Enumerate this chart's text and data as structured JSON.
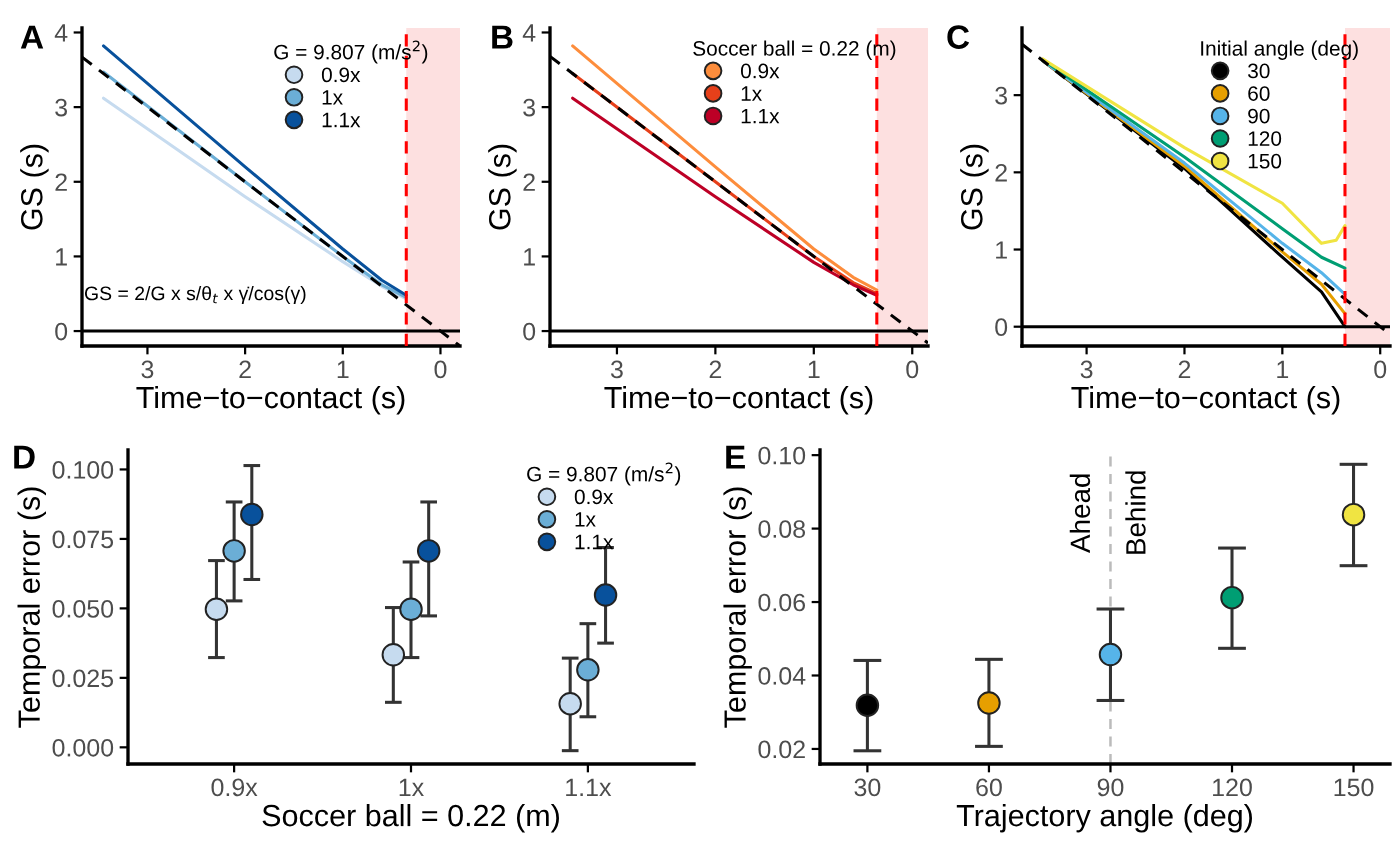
{
  "chart_data": [
    {
      "type": "line",
      "title": "A",
      "xlabel": "Time−to−contact (s)",
      "ylabel": "GS (s)",
      "legend_title": "G = 9.807 (m/s$^{2}$)",
      "legend": "top right",
      "grid": false,
      "xlim": [
        3.67,
        -0.2
      ],
      "xticks": [
        3,
        2,
        1,
        0
      ],
      "ylim": [
        -0.2,
        4.06
      ],
      "yticks": [
        0,
        1,
        2,
        3,
        4
      ],
      "annotations": [
        "GS = 2/G x s/θ$_{t}$ x γ̇/cos(γ)"
      ],
      "bands": [
        {
          "axis": "x",
          "from": 0.35,
          "to": -0.2,
          "color": "#fde0e0"
        }
      ],
      "ref_lines": [
        {
          "axis": "x",
          "value": 0.35,
          "color": "#ff0000",
          "line_style": "dashed"
        },
        {
          "axis": "y",
          "value": 0,
          "color": "#000000",
          "line_style": "solid"
        }
      ],
      "series": [
        {
          "name": "0.9x",
          "color": "#c6dbef",
          "x": [
            3.45,
            2,
            1,
            0.6,
            0.35
          ],
          "values": [
            3.12,
            1.8,
            0.93,
            0.6,
            0.43
          ]
        },
        {
          "name": "1x",
          "color": "#6baed6",
          "x": [
            3.45,
            2,
            1,
            0.6,
            0.35
          ],
          "values": [
            3.47,
            2.0,
            1.0,
            0.62,
            0.45
          ]
        },
        {
          "name": "1.1x",
          "color": "#08519c",
          "x": [
            3.45,
            2,
            1,
            0.6,
            0.35
          ],
          "values": [
            3.82,
            2.2,
            1.1,
            0.68,
            0.48
          ]
        },
        {
          "color": "#000000",
          "line_style": "dashed",
          "x": [
            3.67,
            -0.2
          ],
          "values": [
            3.67,
            -0.2
          ]
        }
      ]
    },
    {
      "type": "line",
      "title": "B",
      "xlabel": "Time−to−contact (s)",
      "ylabel": "GS (s)",
      "legend_title": "Soccer ball = 0.22 (m)",
      "legend": "top right",
      "grid": false,
      "xlim": [
        3.68,
        -0.16
      ],
      "xticks": [
        3,
        2,
        1,
        0
      ],
      "ylim": [
        -0.2,
        4.06
      ],
      "yticks": [
        0,
        1,
        2,
        3,
        4
      ],
      "bands": [
        {
          "axis": "x",
          "from": 0.36,
          "to": -0.16,
          "color": "#fde0e0"
        }
      ],
      "ref_lines": [
        {
          "axis": "x",
          "value": 0.36,
          "color": "#ff0000",
          "line_style": "dashed"
        },
        {
          "axis": "y",
          "value": 0,
          "color": "#000000",
          "line_style": "solid"
        }
      ],
      "series": [
        {
          "name": "0.9x",
          "color": "#fd8d3c",
          "x": [
            3.45,
            2,
            1,
            0.6,
            0.36
          ],
          "values": [
            3.82,
            2.2,
            1.1,
            0.72,
            0.55
          ]
        },
        {
          "name": "1x",
          "color": "#e6401a",
          "x": [
            3.45,
            2,
            1,
            0.6,
            0.36
          ],
          "values": [
            3.45,
            2.0,
            1.0,
            0.65,
            0.5
          ]
        },
        {
          "name": "1.1x",
          "color": "#bd0026",
          "x": [
            3.45,
            2,
            1,
            0.6,
            0.36
          ],
          "values": [
            3.12,
            1.8,
            0.92,
            0.62,
            0.48
          ]
        },
        {
          "color": "#000000",
          "line_style": "dashed",
          "x": [
            3.68,
            -0.16
          ],
          "values": [
            3.68,
            -0.16
          ]
        }
      ]
    },
    {
      "type": "line",
      "title": "C",
      "xlabel": "Time−to−contact (s)",
      "ylabel": "GS (s)",
      "legend_title": "Initial angle (deg)",
      "legend": "top right",
      "grid": false,
      "xlim": [
        3.66,
        -0.1
      ],
      "xticks": [
        3,
        2,
        1,
        0
      ],
      "ylim": [
        -0.25,
        3.87
      ],
      "yticks": [
        0,
        1,
        2,
        3
      ],
      "bands": [
        {
          "axis": "x",
          "from": 0.36,
          "to": -0.1,
          "color": "#fde0e0"
        }
      ],
      "ref_lines": [
        {
          "axis": "x",
          "value": 0.36,
          "color": "#ff0000",
          "line_style": "dashed"
        },
        {
          "axis": "y",
          "value": 0,
          "color": "#000000",
          "line_style": "solid"
        }
      ],
      "series": [
        {
          "name": "30",
          "color": "#000000",
          "x": [
            3.45,
            2,
            1,
            0.6,
            0.36
          ],
          "values": [
            3.45,
            2.05,
            0.9,
            0.45,
            0.0
          ]
        },
        {
          "name": "60",
          "color": "#e69f00",
          "x": [
            3.45,
            2,
            1,
            0.6,
            0.36
          ],
          "values": [
            3.45,
            2.08,
            0.97,
            0.55,
            0.17
          ]
        },
        {
          "name": "90",
          "color": "#56b4e9",
          "x": [
            3.45,
            2,
            1,
            0.6,
            0.36
          ],
          "values": [
            3.45,
            2.12,
            1.08,
            0.7,
            0.42
          ]
        },
        {
          "name": "120",
          "color": "#009e73",
          "x": [
            3.45,
            2,
            1,
            0.6,
            0.36
          ],
          "values": [
            3.46,
            2.2,
            1.27,
            0.9,
            0.76
          ]
        },
        {
          "name": "150",
          "color": "#f0e442",
          "x": [
            3.45,
            2,
            1,
            0.6,
            0.45,
            0.36
          ],
          "values": [
            3.47,
            2.32,
            1.6,
            1.08,
            1.12,
            1.31
          ]
        },
        {
          "color": "#000000",
          "line_style": "dashed",
          "x": [
            3.66,
            -0.1
          ],
          "values": [
            3.66,
            -0.1
          ]
        }
      ]
    },
    {
      "type": "scatter",
      "title": "D",
      "xlabel": "Soccer ball = 0.22 (m)",
      "ylabel": "Temporal error (s)",
      "legend_title": "G = 9.807 (m/s$^{2}$)",
      "legend": "top right",
      "grid": false,
      "marker": "circle",
      "categories": [
        "0.9x",
        "1x",
        "1.1x"
      ],
      "ylim": [
        -0.006,
        0.107
      ],
      "yticks": [
        {
          "value": 0,
          "label": "0.000"
        },
        {
          "value": 0.025,
          "label": "0.025"
        },
        {
          "value": 0.05,
          "label": "0.050"
        },
        {
          "value": 0.075,
          "label": "0.075"
        },
        {
          "value": 0.1,
          "label": "0.100"
        }
      ],
      "series": [
        {
          "name": "0.9x",
          "color": "#c6dbef",
          "values": [
            0.0497,
            0.0333,
            0.0157
          ],
          "errors": [
            [
              0.0323,
              0.0672
            ],
            [
              0.0162,
              0.0503
            ],
            [
              -0.0012,
              0.0321
            ]
          ]
        },
        {
          "name": "1x",
          "color": "#6baed6",
          "values": [
            0.0707,
            0.0497,
            0.0279
          ],
          "errors": [
            [
              0.0527,
              0.0883
            ],
            [
              0.0323,
              0.0667
            ],
            [
              0.011,
              0.0445
            ]
          ]
        },
        {
          "name": "1.1x",
          "color": "#08519c",
          "values": [
            0.0838,
            0.0707,
            0.0548
          ],
          "errors": [
            [
              0.0604,
              0.1014
            ],
            [
              0.0473,
              0.0883
            ],
            [
              0.0375,
              0.0719
            ]
          ]
        }
      ]
    },
    {
      "type": "scatter",
      "title": "E",
      "xlabel": "Trajectory angle (deg)",
      "ylabel": "Temporal error (s)",
      "grid": false,
      "marker": "circle",
      "x": [
        30,
        60,
        90,
        120,
        150
      ],
      "xlim": [
        18.3,
        159
      ],
      "xticks": [
        30,
        60,
        90,
        120,
        150
      ],
      "ylim": [
        0.0159,
        0.1014
      ],
      "yticks": [
        0.02,
        0.04,
        0.06,
        0.08,
        {
          "value": 0.1,
          "label": "0.10"
        }
      ],
      "ref_lines": [
        {
          "axis": "x",
          "value": 90,
          "color": "#bbbbbb",
          "line_style": "dashed"
        }
      ],
      "annotations": [
        "Ahead",
        "Behind"
      ],
      "series": [
        {
          "colors": [
            "#000000",
            "#e69f00",
            "#56b4e9",
            "#009e73",
            "#f0e442"
          ],
          "values": [
            0.0319,
            0.0325,
            0.0457,
            0.0612,
            0.0838
          ],
          "errors": [
            [
              0.0195,
              0.0441
            ],
            [
              0.0207,
              0.0444
            ],
            [
              0.0332,
              0.0581
            ],
            [
              0.0474,
              0.0747
            ],
            [
              0.0699,
              0.0975
            ]
          ]
        }
      ]
    }
  ]
}
